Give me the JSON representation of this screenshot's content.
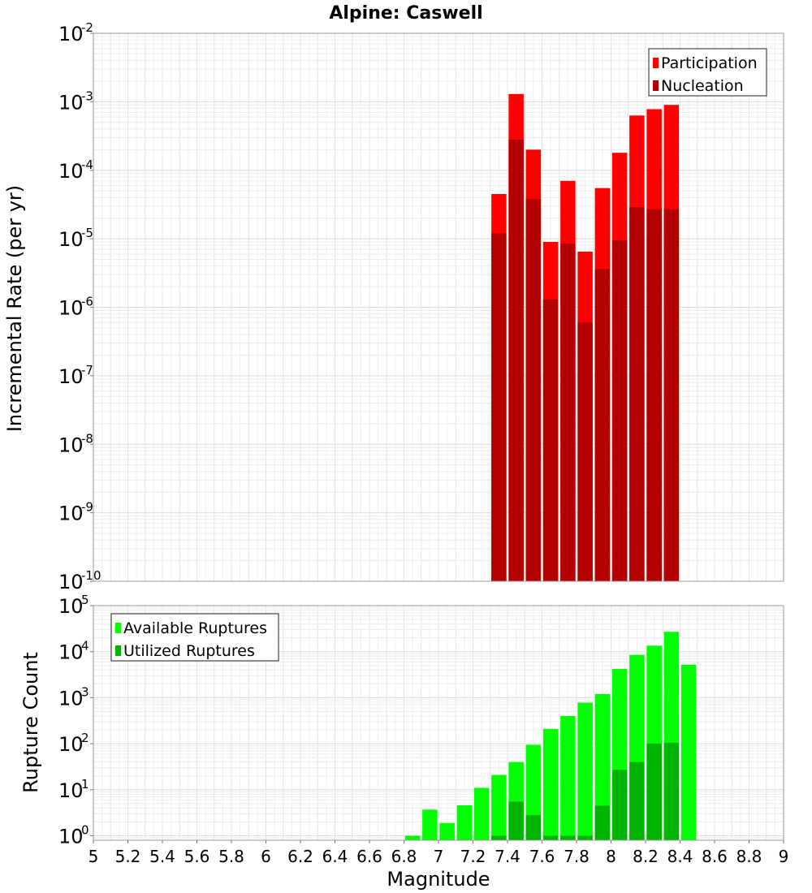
{
  "chart_data": [
    {
      "type": "bar",
      "title": "Alpine: Caswell",
      "ylabel": "Incremental Rate (per yr)",
      "yscale": "log",
      "ylim": [
        1e-10,
        0.01
      ],
      "xlim": [
        5,
        9
      ],
      "legend_position": "top-right",
      "grid": true,
      "series": [
        {
          "name": "Participation",
          "color": "#ff0000",
          "x": [
            7.35,
            7.45,
            7.55,
            7.65,
            7.75,
            7.85,
            7.95,
            8.05,
            8.15,
            8.25,
            8.35
          ],
          "values": [
            4.5e-05,
            0.0013,
            0.0002,
            9e-06,
            7e-05,
            6.5e-06,
            5.5e-05,
            0.00018,
            0.00063,
            0.00078,
            0.0009
          ]
        },
        {
          "name": "Nucleation",
          "color": "#b30000",
          "x": [
            7.35,
            7.45,
            7.55,
            7.65,
            7.75,
            7.85,
            7.95,
            8.05,
            8.15,
            8.25,
            8.35
          ],
          "values": [
            1.2e-05,
            0.00028,
            3.8e-05,
            1.3e-06,
            8.5e-06,
            6e-07,
            3.6e-06,
            9.5e-06,
            2.9e-05,
            2.7e-05,
            2.7e-05
          ]
        }
      ]
    },
    {
      "type": "bar",
      "xlabel": "Magnitude",
      "ylabel": "Rupture Count",
      "yscale": "log",
      "ylim": [
        0.8,
        100000
      ],
      "xlim": [
        5,
        9
      ],
      "xticks": [
        "5",
        "5.2",
        "5.4",
        "5.6",
        "5.8",
        "6",
        "6.2",
        "6.4",
        "6.6",
        "6.8",
        "7",
        "7.2",
        "7.4",
        "7.6",
        "7.8",
        "8",
        "8.2",
        "8.4",
        "8.6",
        "8.8",
        "9"
      ],
      "legend_position": "top-left",
      "grid": true,
      "series": [
        {
          "name": "Available Ruptures",
          "color": "#00ff00",
          "x": [
            6.85,
            6.95,
            7.05,
            7.15,
            7.25,
            7.35,
            7.45,
            7.55,
            7.65,
            7.75,
            7.85,
            7.95,
            8.05,
            8.15,
            8.25,
            8.35,
            8.45
          ],
          "values": [
            1,
            3.7,
            1.9,
            4.6,
            11,
            21,
            40,
            95,
            210,
            400,
            780,
            1200,
            4200,
            8500,
            13500,
            27000,
            5200
          ]
        },
        {
          "name": "Utilized Ruptures",
          "color": "#00b300",
          "x": [
            7.35,
            7.45,
            7.55,
            7.65,
            7.75,
            7.85,
            7.95,
            8.05,
            8.15,
            8.25,
            8.35
          ],
          "values": [
            1,
            5.5,
            2.8,
            1,
            1,
            1,
            4.5,
            27,
            40,
            100,
            105
          ]
        }
      ]
    }
  ]
}
